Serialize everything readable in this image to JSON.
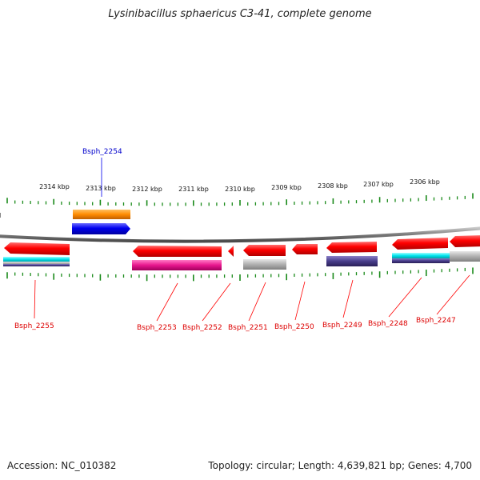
{
  "title": "Lysinibacillus sphaericus C3-41, complete genome",
  "footer": {
    "accession": "Accession: NC_010382",
    "summary": "Topology: circular; Length: 4,639,821 bp; Genes: 4,700"
  },
  "scale": {
    "ticks": [
      "2314 kbp",
      "2313 kbp",
      "2312 kbp",
      "2311 kbp",
      "2310 kbp",
      "2309 kbp",
      "2308 kbp",
      "2307 kbp",
      "2306 kbp"
    ]
  },
  "genes": {
    "forward": [
      {
        "label": "Bsph_2254",
        "color": "#0000ee"
      }
    ],
    "reverse": [
      {
        "label": "Bsph_2255",
        "color": "#ff0000"
      },
      {
        "label": "Bsph_2253",
        "color": "#ff0000"
      },
      {
        "label": "Bsph_2252",
        "color": "#ff0000"
      },
      {
        "label": "Bsph_2251",
        "color": "#ff0000"
      },
      {
        "label": "Bsph_2250",
        "color": "#ff0000"
      },
      {
        "label": "Bsph_2249",
        "color": "#ff0000"
      },
      {
        "label": "Bsph_2248",
        "color": "#ff0000"
      },
      {
        "label": "Bsph_2247",
        "color": "#ff0000"
      }
    ]
  },
  "colors": {
    "cds_reverse": "#ff0000",
    "cds_forward": "#0000ee",
    "feature_orange": "#ff8c00",
    "feature_magenta": "#e8168e",
    "feature_grey": "#a8a8a8",
    "feature_navy": "#483d8b",
    "feature_cyan": "#00e5ee",
    "tick_green": "#1a8a1a",
    "backbone": "#7a7a7a"
  }
}
